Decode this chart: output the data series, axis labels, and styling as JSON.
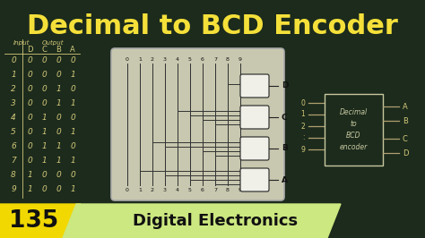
{
  "bg_color": "#1c2b1c",
  "title": "Decimal to BCD Encoder",
  "title_color": "#f5e03a",
  "title_fontsize": 22,
  "bottom_bar_color": "#f0d800",
  "bottom_num": "135",
  "bottom_num_color": "#111111",
  "bottom_text": "Digital Electronics",
  "bottom_text_color": "#111111",
  "bottom_text_bg": "#cce880",
  "table_color": "#d4c97a",
  "circuit_bg": "#c8c8b0",
  "box_text": "Decimal\nto\nBCD\nencoder",
  "truth_table_rows": [
    [
      "0",
      "0",
      "0",
      "0",
      "0"
    ],
    [
      "1",
      "0",
      "0",
      "0",
      "1"
    ],
    [
      "2",
      "0",
      "0",
      "1",
      "0"
    ],
    [
      "3",
      "0",
      "0",
      "1",
      "1"
    ],
    [
      "4",
      "0",
      "1",
      "0",
      "0"
    ],
    [
      "5",
      "0",
      "1",
      "0",
      "1"
    ],
    [
      "6",
      "0",
      "1",
      "1",
      "0"
    ],
    [
      "7",
      "0",
      "1",
      "1",
      "1"
    ],
    [
      "8",
      "1",
      "0",
      "0",
      "0"
    ],
    [
      "9",
      "1",
      "0",
      "0",
      "1"
    ]
  ]
}
